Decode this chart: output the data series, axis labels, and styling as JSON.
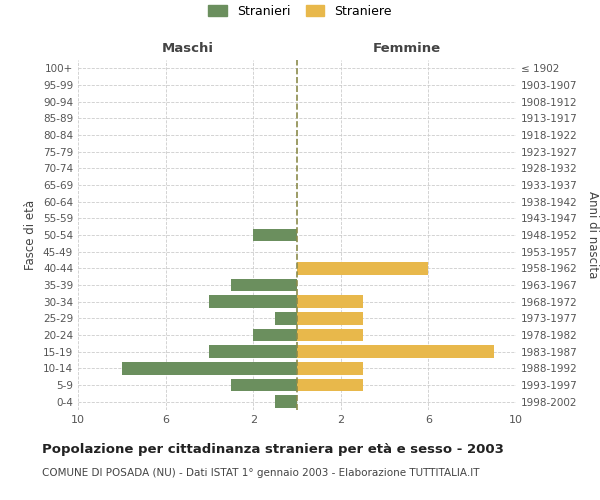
{
  "age_groups": [
    "0-4",
    "5-9",
    "10-14",
    "15-19",
    "20-24",
    "25-29",
    "30-34",
    "35-39",
    "40-44",
    "45-49",
    "50-54",
    "55-59",
    "60-64",
    "65-69",
    "70-74",
    "75-79",
    "80-84",
    "85-89",
    "90-94",
    "95-99",
    "100+"
  ],
  "birth_years": [
    "1998-2002",
    "1993-1997",
    "1988-1992",
    "1983-1987",
    "1978-1982",
    "1973-1977",
    "1968-1972",
    "1963-1967",
    "1958-1962",
    "1953-1957",
    "1948-1952",
    "1943-1947",
    "1938-1942",
    "1933-1937",
    "1928-1932",
    "1923-1927",
    "1918-1922",
    "1913-1917",
    "1908-1912",
    "1903-1907",
    "≤ 1902"
  ],
  "males": [
    1,
    3,
    8,
    4,
    2,
    1,
    4,
    3,
    0,
    0,
    2,
    0,
    0,
    0,
    0,
    0,
    0,
    0,
    0,
    0,
    0
  ],
  "females": [
    0,
    3,
    3,
    9,
    3,
    3,
    3,
    0,
    6,
    0,
    0,
    0,
    0,
    0,
    0,
    0,
    0,
    0,
    0,
    0,
    0
  ],
  "male_color": "#6b8f5e",
  "female_color": "#e8b84b",
  "title": "Popolazione per cittadinanza straniera per età e sesso - 2003",
  "subtitle": "COMUNE DI POSADA (NU) - Dati ISTAT 1° gennaio 2003 - Elaborazione TUTTITALIA.IT",
  "xlabel_left": "Maschi",
  "xlabel_right": "Femmine",
  "ylabel_left": "Fasce di età",
  "ylabel_right": "Anni di nascita",
  "legend_male": "Stranieri",
  "legend_female": "Straniere",
  "xlim": 10,
  "background_color": "#ffffff",
  "grid_color": "#cccccc",
  "dashed_line_color": "#8b8b4b"
}
